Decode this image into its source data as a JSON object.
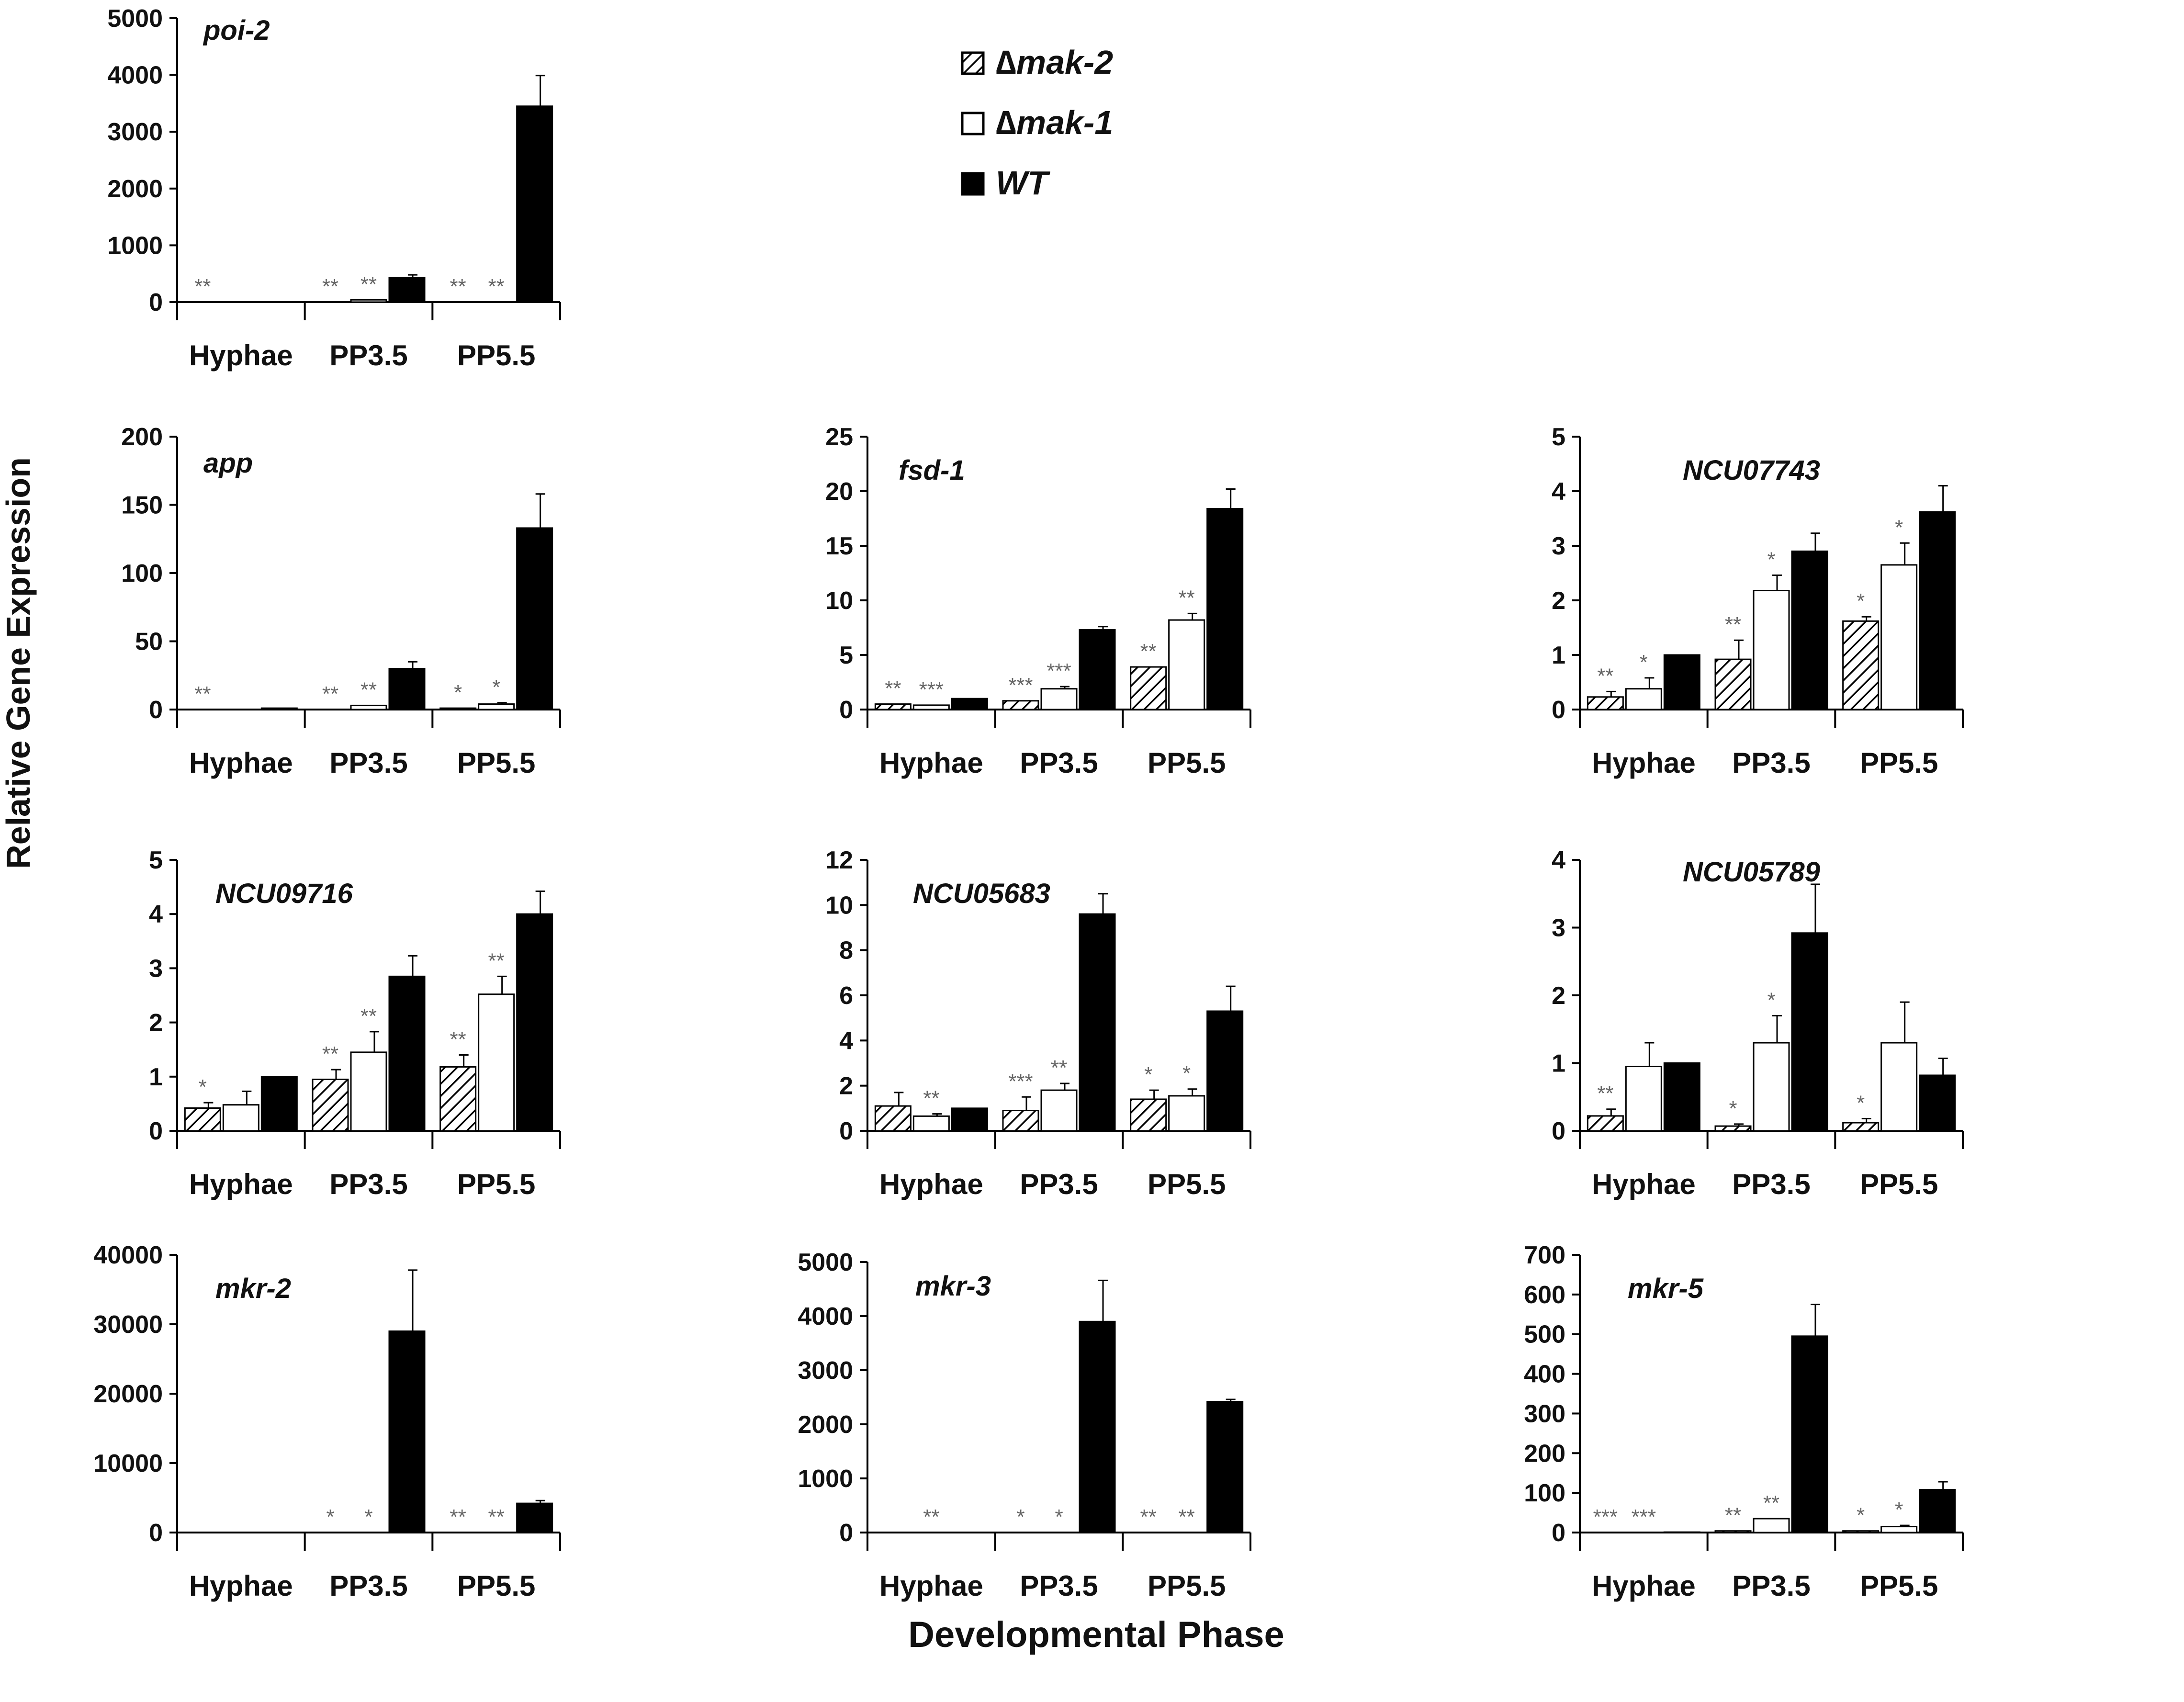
{
  "figure": {
    "y_axis_label": "Relative Gene Expression",
    "x_axis_label": "Developmental Phase"
  },
  "legend": [
    {
      "name": "Δmak-2",
      "symbol": "∆",
      "label": "mak-2",
      "fill": "hatched"
    },
    {
      "name": "Δmak-1",
      "symbol": "∆",
      "label": "mak-1",
      "fill": "white"
    },
    {
      "name": "WT",
      "symbol": "",
      "label": "WT",
      "fill": "black"
    }
  ],
  "colors": {
    "wt": "#000000",
    "bar_outline": "#000000",
    "stars": "#666666",
    "background": "#ffffff"
  },
  "chart_data": [
    {
      "type": "bar",
      "title": "poi-2",
      "categories": [
        "Hyphae",
        "PP3.5",
        "PP5.5"
      ],
      "ylim": [
        0,
        5000
      ],
      "yticks": [
        0,
        1000,
        2000,
        3000,
        4000,
        5000
      ],
      "ytick_labels": [
        "0",
        "1000",
        "2000",
        "3000",
        "4000",
        "5000"
      ],
      "series": [
        {
          "name": "Δmak-2",
          "values": [
            0,
            0,
            0
          ],
          "errors": [
            0,
            0,
            0
          ]
        },
        {
          "name": "Δmak-1",
          "values": [
            0,
            40,
            0
          ],
          "errors": [
            0,
            0,
            0
          ]
        },
        {
          "name": "WT",
          "values": [
            0,
            430,
            3450
          ],
          "errors": [
            0,
            50,
            540
          ]
        }
      ],
      "annotations": [
        {
          "category": "Hyphae",
          "series": "Δmak-2",
          "text": "**"
        },
        {
          "category": "PP3.5",
          "series": "Δmak-2",
          "text": "**"
        },
        {
          "category": "PP3.5",
          "series": "Δmak-1",
          "text": "**"
        },
        {
          "category": "PP5.5",
          "series": "Δmak-2",
          "text": "**"
        },
        {
          "category": "PP5.5",
          "series": "Δmak-1",
          "text": "**"
        }
      ]
    },
    {
      "type": "bar",
      "title": "app",
      "categories": [
        "Hyphae",
        "PP3.5",
        "PP5.5"
      ],
      "ylim": [
        0,
        200
      ],
      "yticks": [
        0,
        50,
        100,
        150,
        200
      ],
      "ytick_labels": [
        "0",
        "50",
        "100",
        "150",
        "200"
      ],
      "series": [
        {
          "name": "Δmak-2",
          "values": [
            0,
            0,
            1
          ],
          "errors": [
            0,
            0,
            0
          ]
        },
        {
          "name": "Δmak-1",
          "values": [
            0,
            3,
            4
          ],
          "errors": [
            0,
            0,
            1
          ]
        },
        {
          "name": "WT",
          "values": [
            1,
            30,
            133
          ],
          "errors": [
            0,
            5,
            25
          ]
        }
      ],
      "annotations": [
        {
          "category": "Hyphae",
          "series": "Δmak-2",
          "text": "**"
        },
        {
          "category": "PP3.5",
          "series": "Δmak-2",
          "text": "**"
        },
        {
          "category": "PP3.5",
          "series": "Δmak-1",
          "text": "**"
        },
        {
          "category": "PP5.5",
          "series": "Δmak-2",
          "text": "*"
        },
        {
          "category": "PP5.5",
          "series": "Δmak-1",
          "text": "*"
        }
      ]
    },
    {
      "type": "bar",
      "title": "fsd-1",
      "categories": [
        "Hyphae",
        "PP3.5",
        "PP5.5"
      ],
      "ylim": [
        0,
        25
      ],
      "yticks": [
        0,
        5,
        10,
        15,
        20,
        25
      ],
      "ytick_labels": [
        "0",
        "5",
        "10",
        "15",
        "20",
        "25"
      ],
      "series": [
        {
          "name": "Δmak-2",
          "values": [
            0.5,
            0.8,
            3.9
          ],
          "errors": [
            0,
            0,
            0
          ]
        },
        {
          "name": "Δmak-1",
          "values": [
            0.4,
            1.9,
            8.2
          ],
          "errors": [
            0,
            0.2,
            0.6
          ]
        },
        {
          "name": "WT",
          "values": [
            1,
            7.3,
            18.4
          ],
          "errors": [
            0,
            0.3,
            1.8
          ]
        }
      ],
      "annotations": [
        {
          "category": "Hyphae",
          "series": "Δmak-2",
          "text": "**"
        },
        {
          "category": "Hyphae",
          "series": "Δmak-1",
          "text": "***"
        },
        {
          "category": "PP3.5",
          "series": "Δmak-2",
          "text": "***"
        },
        {
          "category": "PP3.5",
          "series": "Δmak-1",
          "text": "***"
        },
        {
          "category": "PP5.5",
          "series": "Δmak-2",
          "text": "**"
        },
        {
          "category": "PP5.5",
          "series": "Δmak-1",
          "text": "**"
        }
      ]
    },
    {
      "type": "bar",
      "title": "NCU07743",
      "categories": [
        "Hyphae",
        "PP3.5",
        "PP5.5"
      ],
      "ylim": [
        0,
        5
      ],
      "yticks": [
        0,
        1,
        2,
        3,
        4,
        5
      ],
      "ytick_labels": [
        "0",
        "1",
        "2",
        "3",
        "4",
        "5"
      ],
      "series": [
        {
          "name": "Δmak-2",
          "values": [
            0.23,
            0.92,
            1.62
          ],
          "errors": [
            0.1,
            0.35,
            0.08
          ]
        },
        {
          "name": "Δmak-1",
          "values": [
            0.38,
            2.18,
            2.65
          ],
          "errors": [
            0.2,
            0.28,
            0.4
          ]
        },
        {
          "name": "WT",
          "values": [
            1,
            2.9,
            3.62
          ],
          "errors": [
            0,
            0.33,
            0.48
          ]
        }
      ],
      "annotations": [
        {
          "category": "Hyphae",
          "series": "Δmak-2",
          "text": "**"
        },
        {
          "category": "Hyphae",
          "series": "Δmak-1",
          "text": "*"
        },
        {
          "category": "PP3.5",
          "series": "Δmak-2",
          "text": "**"
        },
        {
          "category": "PP3.5",
          "series": "Δmak-1",
          "text": "*"
        },
        {
          "category": "PP5.5",
          "series": "Δmak-2",
          "text": "*"
        },
        {
          "category": "PP5.5",
          "series": "Δmak-1",
          "text": "*"
        }
      ]
    },
    {
      "type": "bar",
      "title": "NCU09716",
      "categories": [
        "Hyphae",
        "PP3.5",
        "PP5.5"
      ],
      "ylim": [
        0,
        5
      ],
      "yticks": [
        0,
        1,
        2,
        3,
        4,
        5
      ],
      "ytick_labels": [
        "0",
        "1",
        "2",
        "3",
        "4",
        "5"
      ],
      "series": [
        {
          "name": "Δmak-2",
          "values": [
            0.42,
            0.95,
            1.18
          ],
          "errors": [
            0.1,
            0.18,
            0.22
          ]
        },
        {
          "name": "Δmak-1",
          "values": [
            0.48,
            1.45,
            2.52
          ],
          "errors": [
            0.25,
            0.38,
            0.33
          ]
        },
        {
          "name": "WT",
          "values": [
            1,
            2.85,
            4.0
          ],
          "errors": [
            0,
            0.38,
            0.42
          ]
        }
      ],
      "annotations": [
        {
          "category": "Hyphae",
          "series": "Δmak-2",
          "text": "*"
        },
        {
          "category": "PP3.5",
          "series": "Δmak-2",
          "text": "**"
        },
        {
          "category": "PP3.5",
          "series": "Δmak-1",
          "text": "**"
        },
        {
          "category": "PP5.5",
          "series": "Δmak-2",
          "text": "**"
        },
        {
          "category": "PP5.5",
          "series": "Δmak-1",
          "text": "**"
        }
      ]
    },
    {
      "type": "bar",
      "title": "NCU05683",
      "categories": [
        "Hyphae",
        "PP3.5",
        "PP5.5"
      ],
      "ylim": [
        0,
        12
      ],
      "yticks": [
        0,
        2,
        4,
        6,
        8,
        10,
        12
      ],
      "ytick_labels": [
        "0",
        "2",
        "4",
        "6",
        "8",
        "10",
        "12"
      ],
      "series": [
        {
          "name": "Δmak-2",
          "values": [
            1.1,
            0.9,
            1.4
          ],
          "errors": [
            0.6,
            0.6,
            0.4
          ]
        },
        {
          "name": "Δmak-1",
          "values": [
            0.65,
            1.8,
            1.55
          ],
          "errors": [
            0.1,
            0.3,
            0.3
          ]
        },
        {
          "name": "WT",
          "values": [
            1,
            9.6,
            5.3
          ],
          "errors": [
            0,
            0.9,
            1.1
          ]
        }
      ],
      "annotations": [
        {
          "category": "Hyphae",
          "series": "Δmak-1",
          "text": "**"
        },
        {
          "category": "PP3.5",
          "series": "Δmak-2",
          "text": "***"
        },
        {
          "category": "PP3.5",
          "series": "Δmak-1",
          "text": "**"
        },
        {
          "category": "PP5.5",
          "series": "Δmak-2",
          "text": "*"
        },
        {
          "category": "PP5.5",
          "series": "Δmak-1",
          "text": "*"
        }
      ]
    },
    {
      "type": "bar",
      "title": "NCU05789",
      "categories": [
        "Hyphae",
        "PP3.5",
        "PP5.5"
      ],
      "ylim": [
        0,
        4
      ],
      "yticks": [
        0,
        1,
        2,
        3,
        4
      ],
      "ytick_labels": [
        "0",
        "1",
        "2",
        "3",
        "4"
      ],
      "series": [
        {
          "name": "Δmak-2",
          "values": [
            0.22,
            0.07,
            0.12
          ],
          "errors": [
            0.1,
            0.03,
            0.06
          ]
        },
        {
          "name": "Δmak-1",
          "values": [
            0.95,
            1.3,
            1.3
          ],
          "errors": [
            0.35,
            0.4,
            0.6
          ]
        },
        {
          "name": "WT",
          "values": [
            1,
            2.92,
            0.82
          ],
          "errors": [
            0,
            0.72,
            0.25
          ]
        }
      ],
      "annotations": [
        {
          "category": "Hyphae",
          "series": "Δmak-2",
          "text": "**"
        },
        {
          "category": "PP3.5",
          "series": "Δmak-2",
          "text": "*"
        },
        {
          "category": "PP3.5",
          "series": "Δmak-1",
          "text": "*"
        },
        {
          "category": "PP5.5",
          "series": "Δmak-2",
          "text": "*"
        }
      ]
    },
    {
      "type": "bar",
      "title": "mkr-2",
      "categories": [
        "Hyphae",
        "PP3.5",
        "PP5.5"
      ],
      "ylim": [
        0,
        40000
      ],
      "yticks": [
        0,
        10000,
        20000,
        30000,
        40000
      ],
      "ytick_labels": [
        "0",
        "10000",
        "20000",
        "30000",
        "40000"
      ],
      "series": [
        {
          "name": "Δmak-2",
          "values": [
            0,
            0,
            0
          ],
          "errors": [
            0,
            0,
            0
          ]
        },
        {
          "name": "Δmak-1",
          "values": [
            0,
            0,
            0
          ],
          "errors": [
            0,
            0,
            0
          ]
        },
        {
          "name": "WT",
          "values": [
            0,
            29000,
            4200
          ],
          "errors": [
            0,
            8800,
            400
          ]
        }
      ],
      "annotations": [
        {
          "category": "PP3.5",
          "series": "Δmak-2",
          "text": "*"
        },
        {
          "category": "PP3.5",
          "series": "Δmak-1",
          "text": "*"
        },
        {
          "category": "PP5.5",
          "series": "Δmak-2",
          "text": "**"
        },
        {
          "category": "PP5.5",
          "series": "Δmak-1",
          "text": "**"
        }
      ]
    },
    {
      "type": "bar",
      "title": "mkr-3",
      "categories": [
        "Hyphae",
        "PP3.5",
        "PP5.5"
      ],
      "ylim": [
        0,
        5000
      ],
      "yticks": [
        0,
        1000,
        2000,
        3000,
        4000,
        5000
      ],
      "ytick_labels": [
        "0",
        "1000",
        "2000",
        "3000",
        "4000",
        "5000"
      ],
      "series": [
        {
          "name": "Δmak-2",
          "values": [
            0,
            0,
            0
          ],
          "errors": [
            0,
            0,
            0
          ]
        },
        {
          "name": "Δmak-1",
          "values": [
            0,
            0,
            0
          ],
          "errors": [
            0,
            0,
            0
          ]
        },
        {
          "name": "WT",
          "values": [
            0,
            3900,
            2420
          ],
          "errors": [
            0,
            760,
            40
          ]
        }
      ],
      "annotations": [
        {
          "category": "Hyphae",
          "series": "Δmak-1",
          "text": "**"
        },
        {
          "category": "PP3.5",
          "series": "Δmak-2",
          "text": "*"
        },
        {
          "category": "PP3.5",
          "series": "Δmak-1",
          "text": "*"
        },
        {
          "category": "PP5.5",
          "series": "Δmak-2",
          "text": "**"
        },
        {
          "category": "PP5.5",
          "series": "Δmak-1",
          "text": "**"
        }
      ]
    },
    {
      "type": "bar",
      "title": "mkr-5",
      "categories": [
        "Hyphae",
        "PP3.5",
        "PP5.5"
      ],
      "ylim": [
        0,
        700
      ],
      "yticks": [
        0,
        100,
        200,
        300,
        400,
        500,
        600,
        700
      ],
      "ytick_labels": [
        "0",
        "100",
        "200",
        "300",
        "400",
        "500",
        "600",
        "700"
      ],
      "series": [
        {
          "name": "Δmak-2",
          "values": [
            0,
            4,
            4
          ],
          "errors": [
            0,
            0,
            0
          ]
        },
        {
          "name": "Δmak-1",
          "values": [
            0,
            35,
            15
          ],
          "errors": [
            0,
            0,
            3
          ]
        },
        {
          "name": "WT",
          "values": [
            1,
            495,
            108
          ],
          "errors": [
            0,
            80,
            20
          ]
        }
      ],
      "annotations": [
        {
          "category": "Hyphae",
          "series": "Δmak-2",
          "text": "***"
        },
        {
          "category": "Hyphae",
          "series": "Δmak-1",
          "text": "***"
        },
        {
          "category": "PP3.5",
          "series": "Δmak-2",
          "text": "**"
        },
        {
          "category": "PP3.5",
          "series": "Δmak-1",
          "text": "**"
        },
        {
          "category": "PP5.5",
          "series": "Δmak-2",
          "text": "*"
        },
        {
          "category": "PP5.5",
          "series": "Δmak-1",
          "text": "*"
        }
      ]
    }
  ]
}
